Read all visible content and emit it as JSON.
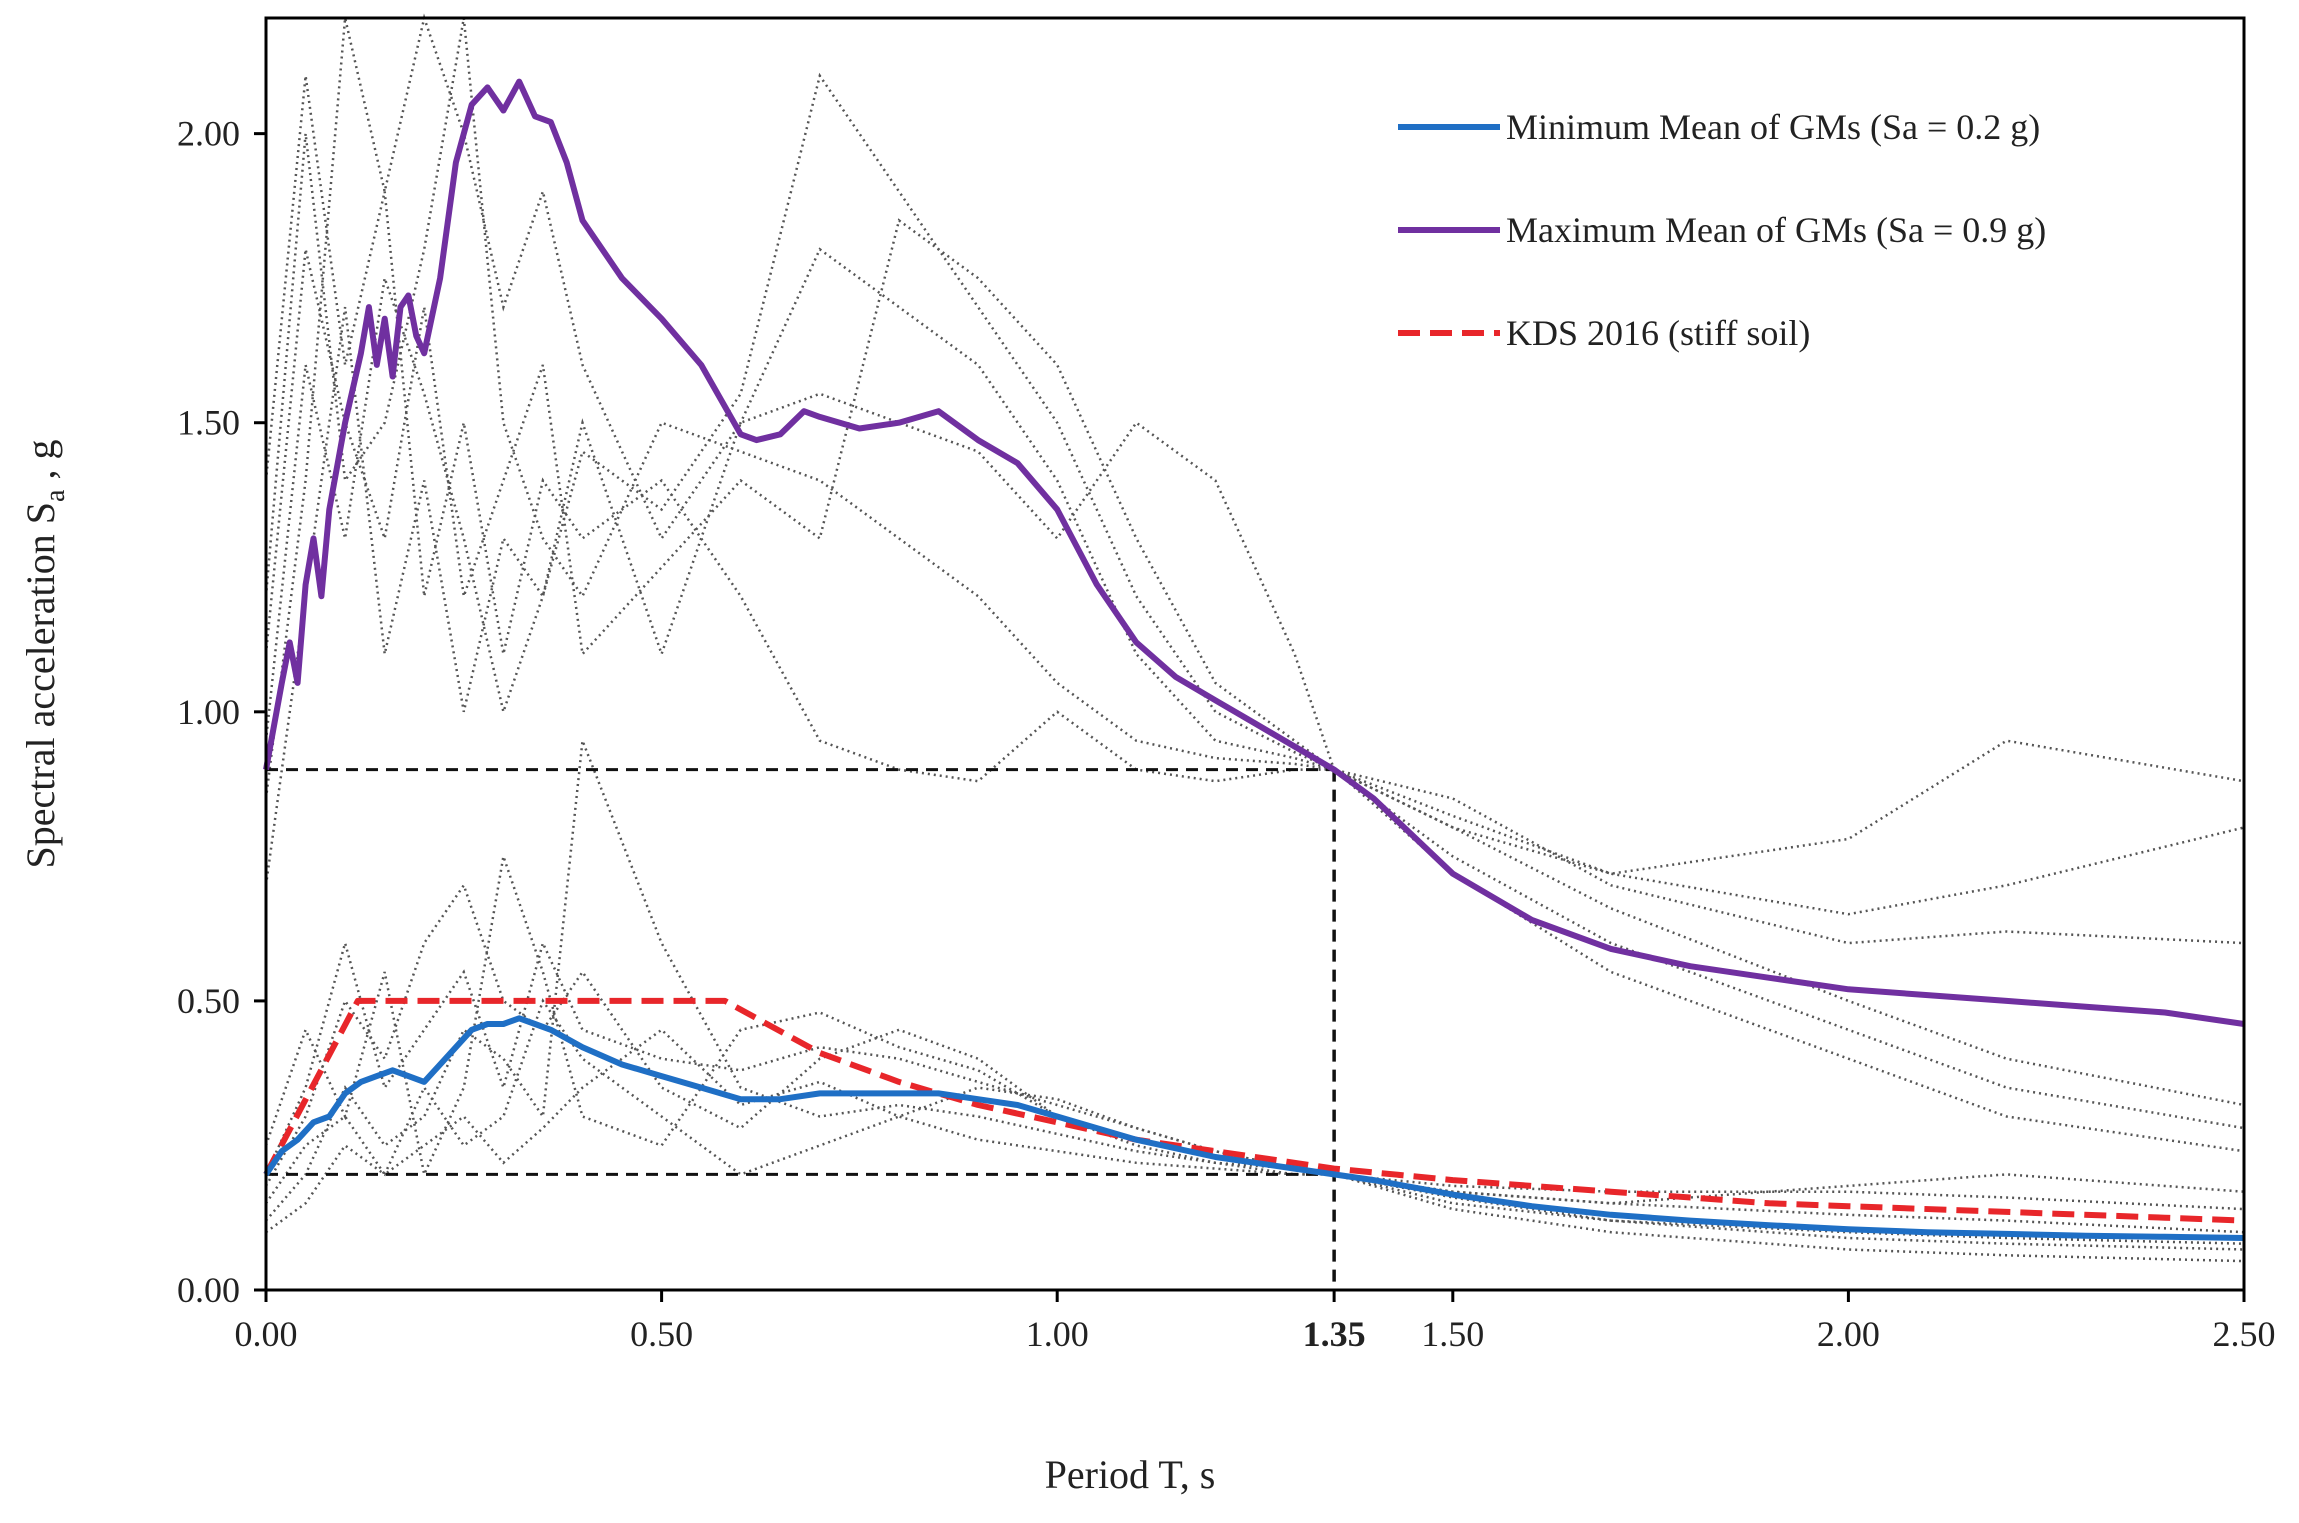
{
  "chart_data": {
    "type": "line",
    "title": "",
    "xlabel": "Period T, s",
    "ylabel_main": "Spectral  acceleration  S",
    "ylabel_sub": "a",
    "ylabel_tail": " , g",
    "xlim": [
      0,
      2.5
    ],
    "ylim": [
      0,
      2.2
    ],
    "x_ticks": [
      0,
      0.5,
      1.0,
      1.35,
      1.5,
      2.0,
      2.5
    ],
    "x_tick_labels": [
      "0.00",
      "0.50",
      "1.00",
      "1.35",
      "1.50",
      "2.00",
      "2.50"
    ],
    "y_ticks": [
      0,
      0.5,
      1.0,
      1.5,
      2.0
    ],
    "y_tick_labels": [
      "0.00",
      "0.50",
      "1.00",
      "1.50",
      "2.00"
    ],
    "colors": {
      "min_mean": "#1f6fc5",
      "max_mean": "#7030a0",
      "kds": "#e8262a",
      "ground_motion": "#555555",
      "reference": "#111111"
    },
    "legend": {
      "placement": "top-right",
      "entries": [
        "Minimum Mean of GMs (Sa = 0.2 g)",
        "Maximum Mean of GMs (Sa = 0.9 g)",
        "KDS 2016 (stiff soil)"
      ]
    },
    "reference_lines": {
      "period": 1.35,
      "sa_max_target": 0.9,
      "sa_min_target": 0.2
    },
    "series": [
      {
        "name": "Minimum Mean of GMs (Sa = 0.2 g)",
        "x": [
          0,
          0.02,
          0.04,
          0.06,
          0.08,
          0.1,
          0.12,
          0.14,
          0.16,
          0.18,
          0.2,
          0.22,
          0.24,
          0.26,
          0.28,
          0.3,
          0.32,
          0.34,
          0.36,
          0.4,
          0.45,
          0.5,
          0.55,
          0.6,
          0.65,
          0.7,
          0.75,
          0.8,
          0.85,
          0.9,
          0.95,
          1.0,
          1.1,
          1.2,
          1.3,
          1.35,
          1.4,
          1.5,
          1.6,
          1.7,
          1.8,
          1.9,
          2.0,
          2.1,
          2.2,
          2.3,
          2.4,
          2.5
        ],
        "values": [
          0.2,
          0.24,
          0.26,
          0.29,
          0.3,
          0.34,
          0.36,
          0.37,
          0.38,
          0.37,
          0.36,
          0.39,
          0.42,
          0.45,
          0.46,
          0.46,
          0.47,
          0.46,
          0.45,
          0.42,
          0.39,
          0.37,
          0.35,
          0.33,
          0.33,
          0.34,
          0.34,
          0.34,
          0.34,
          0.33,
          0.32,
          0.3,
          0.26,
          0.23,
          0.21,
          0.2,
          0.19,
          0.165,
          0.145,
          0.13,
          0.12,
          0.112,
          0.105,
          0.1,
          0.097,
          0.094,
          0.092,
          0.09
        ]
      },
      {
        "name": "Maximum Mean of GMs (Sa = 0.9 g)",
        "x": [
          0,
          0.02,
          0.03,
          0.04,
          0.05,
          0.06,
          0.07,
          0.08,
          0.1,
          0.12,
          0.13,
          0.14,
          0.15,
          0.16,
          0.17,
          0.18,
          0.19,
          0.2,
          0.22,
          0.24,
          0.26,
          0.28,
          0.3,
          0.32,
          0.34,
          0.36,
          0.38,
          0.4,
          0.45,
          0.5,
          0.55,
          0.6,
          0.62,
          0.65,
          0.68,
          0.7,
          0.75,
          0.8,
          0.85,
          0.9,
          0.95,
          1.0,
          1.05,
          1.1,
          1.15,
          1.2,
          1.25,
          1.3,
          1.35,
          1.4,
          1.5,
          1.6,
          1.7,
          1.8,
          1.9,
          2.0,
          2.1,
          2.2,
          2.3,
          2.4,
          2.5
        ],
        "values": [
          0.9,
          1.05,
          1.12,
          1.05,
          1.22,
          1.3,
          1.2,
          1.35,
          1.5,
          1.62,
          1.7,
          1.6,
          1.68,
          1.58,
          1.7,
          1.72,
          1.65,
          1.62,
          1.75,
          1.95,
          2.05,
          2.08,
          2.04,
          2.09,
          2.03,
          2.02,
          1.95,
          1.85,
          1.75,
          1.68,
          1.6,
          1.48,
          1.47,
          1.48,
          1.52,
          1.51,
          1.49,
          1.5,
          1.52,
          1.47,
          1.43,
          1.35,
          1.22,
          1.12,
          1.06,
          1.02,
          0.98,
          0.94,
          0.9,
          0.85,
          0.72,
          0.64,
          0.59,
          0.56,
          0.54,
          0.52,
          0.51,
          0.5,
          0.49,
          0.48,
          0.46
        ]
      },
      {
        "name": "KDS 2016 (stiff soil)",
        "x": [
          0,
          0.116,
          0.58,
          0.7,
          0.8,
          0.9,
          1.0,
          1.1,
          1.2,
          1.3,
          1.35,
          1.5,
          1.6,
          1.7,
          1.8,
          1.9,
          2.0,
          2.2,
          2.4,
          2.5
        ],
        "values": [
          0.2,
          0.5,
          0.5,
          0.41,
          0.36,
          0.32,
          0.29,
          0.26,
          0.24,
          0.22,
          0.21,
          0.19,
          0.18,
          0.17,
          0.16,
          0.15,
          0.145,
          0.135,
          0.125,
          0.12
        ]
      }
    ],
    "ground_motions_scaled_to_max": [
      {
        "x": [
          0,
          0.05,
          0.1,
          0.15,
          0.2,
          0.25,
          0.3,
          0.35,
          0.4,
          0.5,
          0.6,
          0.7,
          0.8,
          0.9,
          1.0,
          1.1,
          1.2,
          1.3,
          1.35,
          1.5,
          1.7,
          2.0,
          2.2,
          2.5
        ],
        "values": [
          0.85,
          1.4,
          2.2,
          1.9,
          2.2,
          2.0,
          1.7,
          1.9,
          1.6,
          1.3,
          1.5,
          1.8,
          1.7,
          1.6,
          1.4,
          1.1,
          0.95,
          0.92,
          0.9,
          0.75,
          0.6,
          0.45,
          0.35,
          0.28
        ]
      },
      {
        "x": [
          0,
          0.05,
          0.1,
          0.15,
          0.2,
          0.25,
          0.3,
          0.35,
          0.4,
          0.5,
          0.6,
          0.7,
          0.8,
          0.9,
          1.0,
          1.1,
          1.2,
          1.3,
          1.35,
          1.5,
          1.7,
          2.0,
          2.2,
          2.5
        ],
        "values": [
          1.1,
          1.8,
          1.5,
          1.3,
          1.7,
          1.2,
          1.4,
          1.6,
          1.1,
          1.25,
          1.4,
          1.3,
          1.85,
          1.75,
          1.6,
          1.3,
          1.05,
          0.95,
          0.9,
          0.85,
          0.7,
          0.6,
          0.62,
          0.6
        ]
      },
      {
        "x": [
          0,
          0.05,
          0.1,
          0.15,
          0.2,
          0.25,
          0.3,
          0.35,
          0.4,
          0.5,
          0.6,
          0.7,
          0.8,
          0.9,
          1.0,
          1.1,
          1.2,
          1.3,
          1.35,
          1.5,
          1.7,
          2.0,
          2.2,
          2.5
        ],
        "values": [
          0.7,
          1.2,
          1.7,
          1.1,
          1.4,
          1.0,
          1.3,
          1.2,
          1.5,
          1.1,
          1.5,
          1.55,
          1.5,
          1.45,
          1.3,
          1.5,
          1.4,
          1.1,
          0.9,
          0.8,
          0.72,
          0.78,
          0.95,
          0.88
        ]
      },
      {
        "x": [
          0,
          0.05,
          0.1,
          0.15,
          0.2,
          0.25,
          0.3,
          0.35,
          0.4,
          0.5,
          0.6,
          0.7,
          0.8,
          0.9,
          1.0,
          1.1,
          1.2,
          1.3,
          1.35,
          1.5,
          1.7,
          2.0,
          2.2,
          2.5
        ],
        "values": [
          1.4,
          2.1,
          1.6,
          1.9,
          1.2,
          1.5,
          1.1,
          1.4,
          1.3,
          1.4,
          1.2,
          0.95,
          0.9,
          0.88,
          1.0,
          0.9,
          0.88,
          0.9,
          0.9,
          0.72,
          0.55,
          0.4,
          0.3,
          0.24
        ]
      },
      {
        "x": [
          0,
          0.05,
          0.1,
          0.15,
          0.2,
          0.25,
          0.3,
          0.35,
          0.4,
          0.5,
          0.6,
          0.7,
          0.8,
          0.9,
          1.0,
          1.1,
          1.2,
          1.3,
          1.35,
          1.5,
          1.7,
          2.0,
          2.2,
          2.5
        ],
        "values": [
          0.95,
          1.6,
          1.3,
          1.75,
          1.55,
          1.3,
          1.0,
          1.2,
          1.45,
          1.35,
          1.55,
          2.1,
          1.9,
          1.7,
          1.5,
          1.2,
          1.0,
          0.93,
          0.9,
          0.8,
          0.66,
          0.5,
          0.4,
          0.32
        ]
      },
      {
        "x": [
          0,
          0.05,
          0.1,
          0.15,
          0.2,
          0.25,
          0.3,
          0.35,
          0.4,
          0.5,
          0.6,
          0.7,
          0.8,
          0.9,
          1.0,
          1.1,
          1.2,
          1.3,
          1.35,
          1.5,
          1.7,
          2.0,
          2.2,
          2.5
        ],
        "values": [
          1.2,
          2.0,
          1.4,
          1.5,
          1.8,
          2.2,
          1.5,
          1.3,
          1.2,
          1.5,
          1.45,
          1.4,
          1.3,
          1.2,
          1.05,
          0.95,
          0.92,
          0.91,
          0.9,
          0.82,
          0.72,
          0.65,
          0.7,
          0.8
        ]
      }
    ],
    "ground_motions_scaled_to_min": [
      {
        "x": [
          0,
          0.05,
          0.1,
          0.15,
          0.2,
          0.25,
          0.3,
          0.35,
          0.4,
          0.5,
          0.6,
          0.7,
          0.8,
          0.9,
          1.0,
          1.1,
          1.2,
          1.3,
          1.35,
          1.5,
          1.7,
          2.0,
          2.2,
          2.5
        ],
        "values": [
          0.18,
          0.3,
          0.5,
          0.4,
          0.6,
          0.7,
          0.5,
          0.45,
          0.55,
          0.35,
          0.28,
          0.4,
          0.45,
          0.4,
          0.3,
          0.25,
          0.22,
          0.21,
          0.2,
          0.15,
          0.12,
          0.09,
          0.08,
          0.07
        ]
      },
      {
        "x": [
          0,
          0.05,
          0.1,
          0.15,
          0.2,
          0.25,
          0.3,
          0.35,
          0.4,
          0.5,
          0.6,
          0.7,
          0.8,
          0.9,
          1.0,
          1.1,
          1.2,
          1.3,
          1.35,
          1.5,
          1.7,
          2.0,
          2.2,
          2.5
        ],
        "values": [
          0.12,
          0.2,
          0.35,
          0.25,
          0.3,
          0.45,
          0.4,
          0.3,
          0.95,
          0.6,
          0.35,
          0.3,
          0.32,
          0.3,
          0.27,
          0.24,
          0.22,
          0.2,
          0.2,
          0.17,
          0.15,
          0.18,
          0.2,
          0.17
        ]
      },
      {
        "x": [
          0,
          0.05,
          0.1,
          0.15,
          0.2,
          0.25,
          0.3,
          0.35,
          0.4,
          0.5,
          0.6,
          0.7,
          0.8,
          0.9,
          1.0,
          1.1,
          1.2,
          1.3,
          1.35,
          1.5,
          1.7,
          2.0,
          2.2,
          2.5
        ],
        "values": [
          0.25,
          0.45,
          0.3,
          0.55,
          0.2,
          0.35,
          0.75,
          0.55,
          0.3,
          0.25,
          0.45,
          0.48,
          0.42,
          0.38,
          0.3,
          0.26,
          0.23,
          0.21,
          0.2,
          0.16,
          0.12,
          0.1,
          0.09,
          0.08
        ]
      },
      {
        "x": [
          0,
          0.05,
          0.1,
          0.15,
          0.2,
          0.25,
          0.3,
          0.35,
          0.4,
          0.5,
          0.6,
          0.7,
          0.8,
          0.9,
          1.0,
          1.1,
          1.2,
          1.3,
          1.35,
          1.5,
          1.7,
          2.0,
          2.2,
          2.5
        ],
        "values": [
          0.1,
          0.15,
          0.25,
          0.2,
          0.35,
          0.25,
          0.3,
          0.5,
          0.4,
          0.3,
          0.2,
          0.25,
          0.3,
          0.35,
          0.33,
          0.28,
          0.24,
          0.21,
          0.2,
          0.18,
          0.17,
          0.17,
          0.16,
          0.14
        ]
      },
      {
        "x": [
          0,
          0.05,
          0.1,
          0.15,
          0.2,
          0.25,
          0.3,
          0.35,
          0.4,
          0.5,
          0.6,
          0.7,
          0.8,
          0.9,
          1.0,
          1.1,
          1.2,
          1.3,
          1.35,
          1.5,
          1.7,
          2.0,
          2.2,
          2.5
        ],
        "values": [
          0.2,
          0.35,
          0.6,
          0.35,
          0.45,
          0.55,
          0.35,
          0.6,
          0.45,
          0.4,
          0.38,
          0.42,
          0.4,
          0.36,
          0.32,
          0.28,
          0.24,
          0.21,
          0.2,
          0.14,
          0.1,
          0.07,
          0.06,
          0.05
        ]
      },
      {
        "x": [
          0,
          0.05,
          0.1,
          0.15,
          0.2,
          0.25,
          0.3,
          0.35,
          0.4,
          0.5,
          0.6,
          0.7,
          0.8,
          0.9,
          1.0,
          1.1,
          1.2,
          1.3,
          1.35,
          1.5,
          1.7,
          2.0,
          2.2,
          2.5
        ],
        "values": [
          0.15,
          0.25,
          0.3,
          0.2,
          0.25,
          0.3,
          0.22,
          0.28,
          0.35,
          0.45,
          0.32,
          0.36,
          0.3,
          0.26,
          0.24,
          0.22,
          0.21,
          0.2,
          0.2,
          0.17,
          0.15,
          0.13,
          0.12,
          0.1
        ]
      }
    ]
  }
}
